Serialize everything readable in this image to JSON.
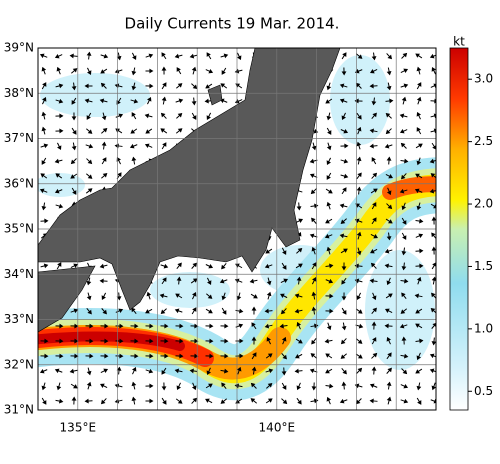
{
  "title": "Daily Currents 19 Mar. 2014.",
  "map": {
    "lon_range": [
      134,
      144
    ],
    "lat_range": [
      31,
      39
    ],
    "lat_ticks": [
      {
        "value": 39,
        "label": "39°N"
      },
      {
        "value": 38,
        "label": "38°N"
      },
      {
        "value": 37,
        "label": "37°N"
      },
      {
        "value": 36,
        "label": "36°N"
      },
      {
        "value": 35,
        "label": "35°N"
      },
      {
        "value": 34,
        "label": "34°N"
      },
      {
        "value": 33,
        "label": "33°N"
      },
      {
        "value": 32,
        "label": "32°N"
      },
      {
        "value": 31,
        "label": "31°N"
      }
    ],
    "lon_ticks": [
      {
        "value": 135,
        "label": "135°E"
      },
      {
        "value": 140,
        "label": "140°E"
      }
    ]
  },
  "colorbar": {
    "unit": "kt",
    "range": [
      0.35,
      3.25
    ],
    "ticks": [
      {
        "value": 0.5,
        "label": "0.5"
      },
      {
        "value": 1.0,
        "label": "1.0"
      },
      {
        "value": 1.5,
        "label": "1.5"
      },
      {
        "value": 2.0,
        "label": "2.0"
      },
      {
        "value": 2.5,
        "label": "2.5"
      },
      {
        "value": 3.0,
        "label": "3.0"
      }
    ]
  }
}
